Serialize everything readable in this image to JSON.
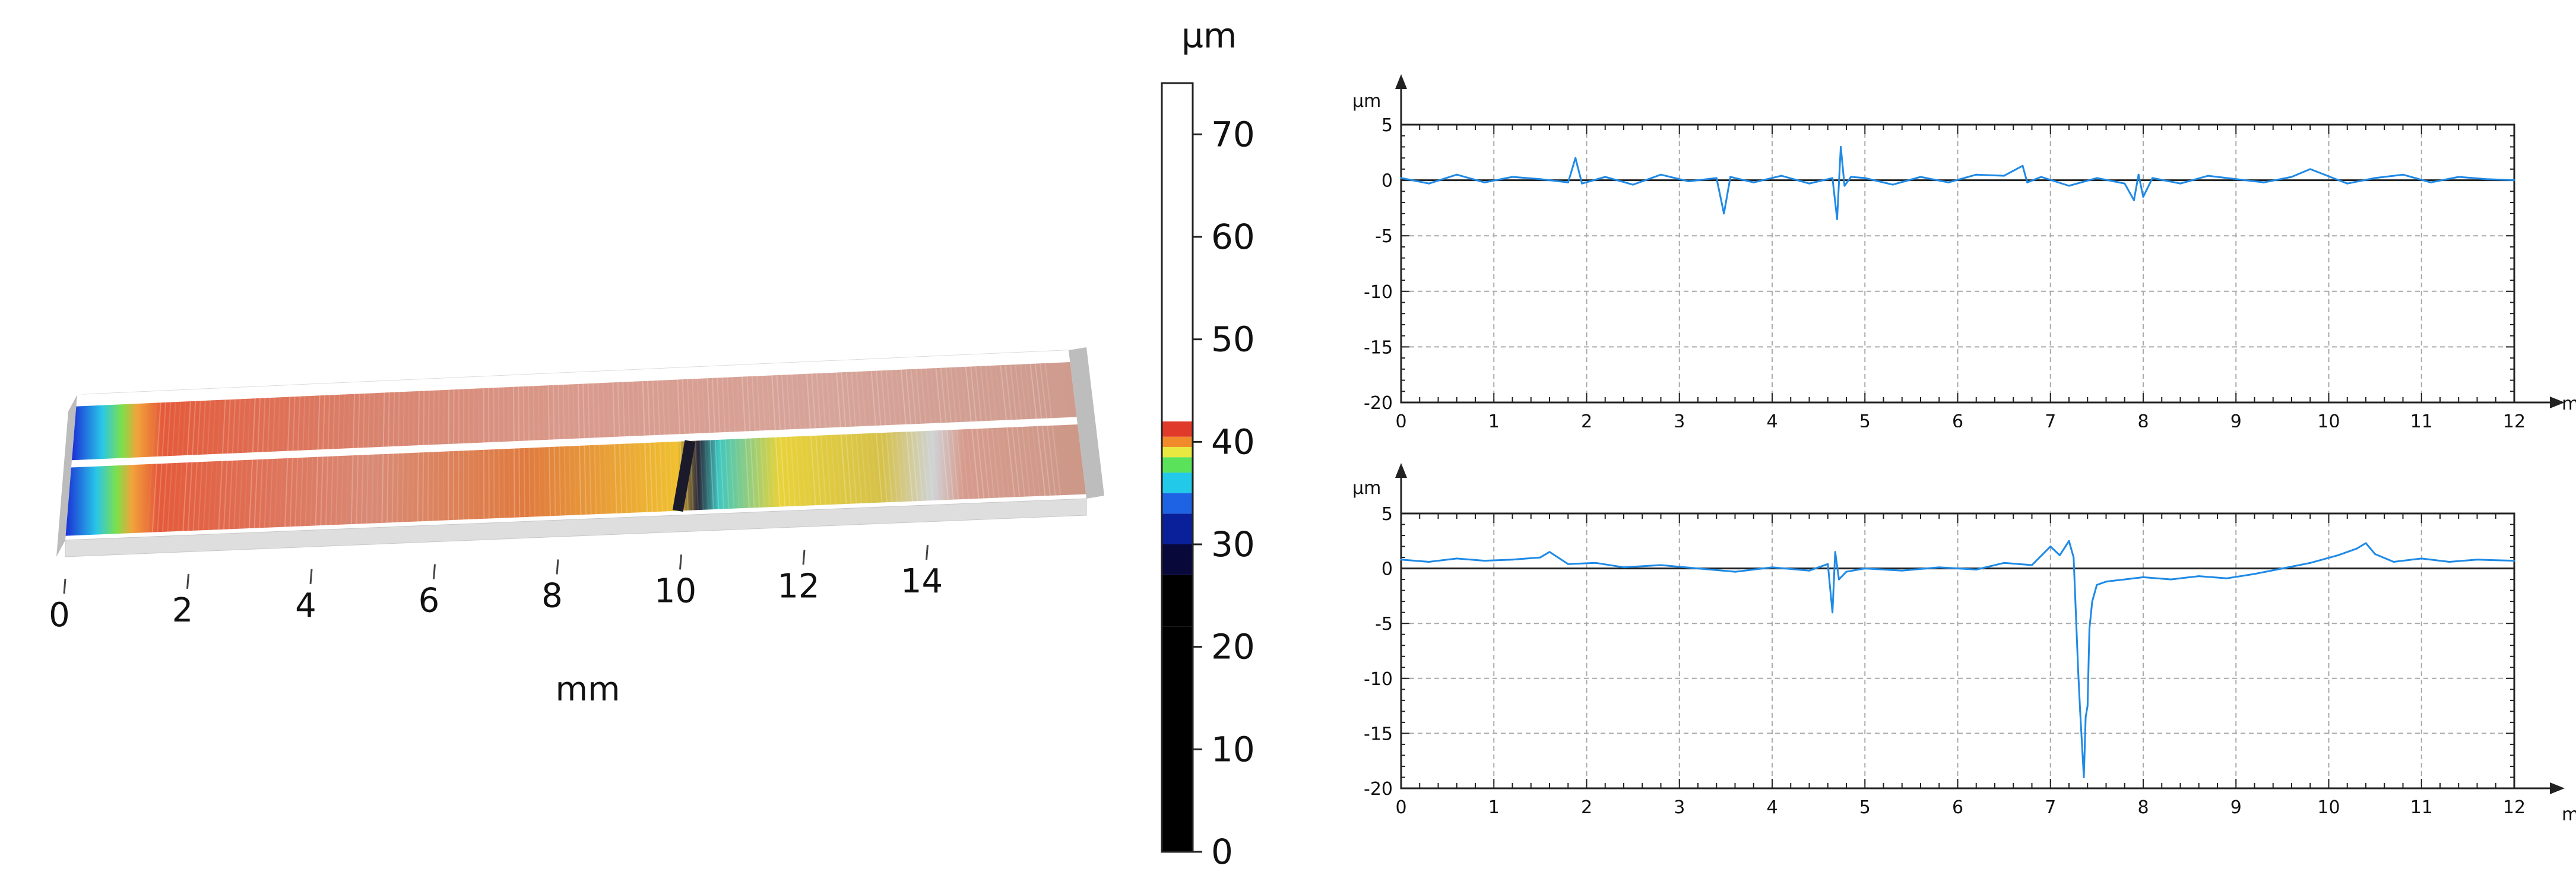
{
  "chart_data": [
    {
      "type": "surface3d",
      "xlabel": "mm",
      "x_ticks": [
        "0",
        "2",
        "4",
        "6",
        "8",
        "10",
        "12",
        "14"
      ],
      "xlim": [
        0,
        16
      ],
      "colorbar": {
        "unit": "µm",
        "ticks": [
          "0",
          "10",
          "20",
          "30",
          "40",
          "50",
          "60",
          "70"
        ],
        "range": [
          0,
          75
        ]
      }
    },
    {
      "type": "line",
      "ylabel": "µm",
      "xlabel": "mm",
      "xlim": [
        0,
        12
      ],
      "ylim": [
        -20,
        5
      ],
      "x_ticks": [
        "0",
        "1",
        "2",
        "3",
        "4",
        "5",
        "6",
        "7",
        "8",
        "9",
        "10",
        "11",
        "12"
      ],
      "y_ticks": [
        "5",
        "0",
        "-5",
        "-10",
        "-15",
        "-20"
      ],
      "grid": true,
      "color": "#1f8ae6",
      "series": [
        {
          "x": [
            0,
            0.3,
            0.6,
            0.9,
            1.2,
            1.5,
            1.8,
            1.88,
            1.95,
            2.2,
            2.5,
            2.8,
            3.1,
            3.4,
            3.48,
            3.55,
            3.8,
            4.1,
            4.4,
            4.65,
            4.7,
            4.74,
            4.78,
            4.85,
            5.0,
            5.3,
            5.6,
            5.9,
            6.2,
            6.5,
            6.7,
            6.75,
            6.9,
            7.2,
            7.5,
            7.8,
            7.9,
            7.95,
            8.0,
            8.1,
            8.4,
            8.7,
            9.0,
            9.3,
            9.6,
            9.8,
            10.2,
            10.5,
            10.8,
            11.1,
            11.4,
            11.7,
            12.0
          ],
          "y": [
            0.2,
            -0.3,
            0.5,
            -0.2,
            0.3,
            0.1,
            -0.2,
            2.0,
            -0.3,
            0.3,
            -0.4,
            0.5,
            -0.1,
            0.2,
            -3.0,
            0.3,
            -0.2,
            0.4,
            -0.3,
            0.2,
            -3.5,
            3.0,
            -0.5,
            0.3,
            0.2,
            -0.4,
            0.3,
            -0.2,
            0.5,
            0.4,
            1.3,
            -0.2,
            0.3,
            -0.5,
            0.2,
            -0.3,
            -1.8,
            0.5,
            -1.5,
            0.2,
            -0.3,
            0.4,
            0.1,
            -0.2,
            0.3,
            1.0,
            -0.3,
            0.2,
            0.5,
            -0.2,
            0.3,
            0.1,
            0.0
          ]
        }
      ]
    },
    {
      "type": "line",
      "ylabel": "µm",
      "xlabel": "mm",
      "xlim": [
        0,
        12
      ],
      "ylim": [
        -20,
        5
      ],
      "x_ticks": [
        "0",
        "1",
        "2",
        "3",
        "4",
        "5",
        "6",
        "7",
        "8",
        "9",
        "10",
        "11",
        "12"
      ],
      "y_ticks": [
        "5",
        "0",
        "-5",
        "-10",
        "-15",
        "-20"
      ],
      "grid": true,
      "color": "#1f8ae6",
      "series": [
        {
          "x": [
            0,
            0.3,
            0.6,
            0.9,
            1.2,
            1.5,
            1.6,
            1.8,
            2.1,
            2.4,
            2.8,
            3.2,
            3.6,
            4.0,
            4.4,
            4.6,
            4.65,
            4.68,
            4.72,
            4.8,
            5.0,
            5.4,
            5.8,
            6.2,
            6.5,
            6.8,
            7.0,
            7.1,
            7.2,
            7.25,
            7.3,
            7.32,
            7.34,
            7.36,
            7.38,
            7.4,
            7.42,
            7.45,
            7.5,
            7.6,
            7.8,
            8.0,
            8.3,
            8.6,
            8.9,
            9.2,
            9.5,
            9.8,
            10.1,
            10.3,
            10.4,
            10.5,
            10.7,
            11.0,
            11.3,
            11.6,
            12.0
          ],
          "y": [
            0.8,
            0.6,
            0.9,
            0.7,
            0.8,
            1.0,
            1.5,
            0.4,
            0.5,
            0.1,
            0.3,
            0.0,
            -0.3,
            0.1,
            -0.2,
            0.4,
            -4.0,
            1.5,
            -1.0,
            -0.3,
            0.0,
            -0.2,
            0.1,
            -0.1,
            0.5,
            0.3,
            2.0,
            1.2,
            2.5,
            1.0,
            -9.5,
            -13.0,
            -16.0,
            -19.0,
            -13.5,
            -12.5,
            -5.5,
            -3.0,
            -1.5,
            -1.2,
            -1.0,
            -0.8,
            -1.0,
            -0.7,
            -0.9,
            -0.5,
            0.0,
            0.5,
            1.2,
            1.8,
            2.3,
            1.3,
            0.6,
            0.9,
            0.6,
            0.8,
            0.7
          ]
        }
      ]
    }
  ]
}
